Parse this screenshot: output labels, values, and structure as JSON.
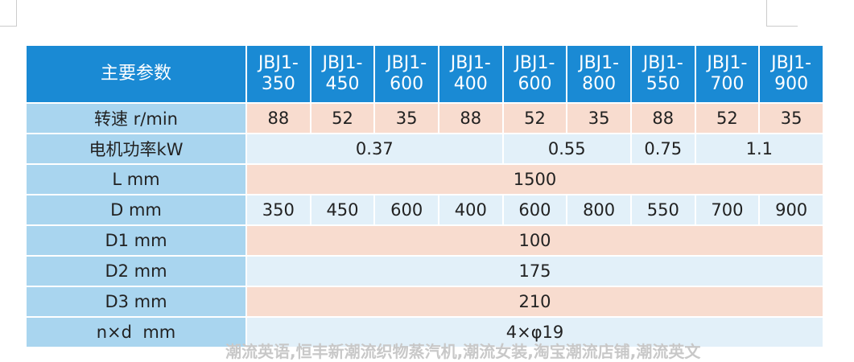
{
  "header": {
    "title": "主要参数",
    "models": [
      [
        "JBJ1-",
        "350"
      ],
      [
        "JBJ1-",
        "450"
      ],
      [
        "JBJ1-",
        "600"
      ],
      [
        "JBJ1-",
        "400"
      ],
      [
        "JBJ1-",
        "600"
      ],
      [
        "JBJ1-",
        "800"
      ],
      [
        "JBJ1-",
        "550"
      ],
      [
        "JBJ1-",
        "700"
      ],
      [
        "JBJ1-",
        "900"
      ]
    ]
  },
  "table": {
    "rows": [
      {
        "label": "转速 r/min",
        "cells": [
          88,
          52,
          35,
          88,
          52,
          35,
          88,
          52,
          35
        ]
      },
      {
        "label": "电机功率kW",
        "cells": [
          0.37,
          0.55,
          0.75,
          1.1
        ]
      },
      {
        "label": "L mm",
        "cells": [
          1500
        ]
      },
      {
        "label": "D mm",
        "cells": [
          350,
          450,
          600,
          400,
          600,
          800,
          550,
          700,
          900
        ]
      },
      {
        "label": "D1 mm",
        "cells": [
          100
        ]
      },
      {
        "label": "D2 mm",
        "cells": [
          175
        ]
      },
      {
        "label": "D3 mm",
        "cells": [
          210
        ]
      },
      {
        "label": "n×d  mm",
        "cells": [
          "4×φ19"
        ]
      }
    ]
  },
  "watermark": "潮流英语,恒丰新潮流织物蒸汽机,潮流女装,淘宝潮流店铺,潮流英文"
}
